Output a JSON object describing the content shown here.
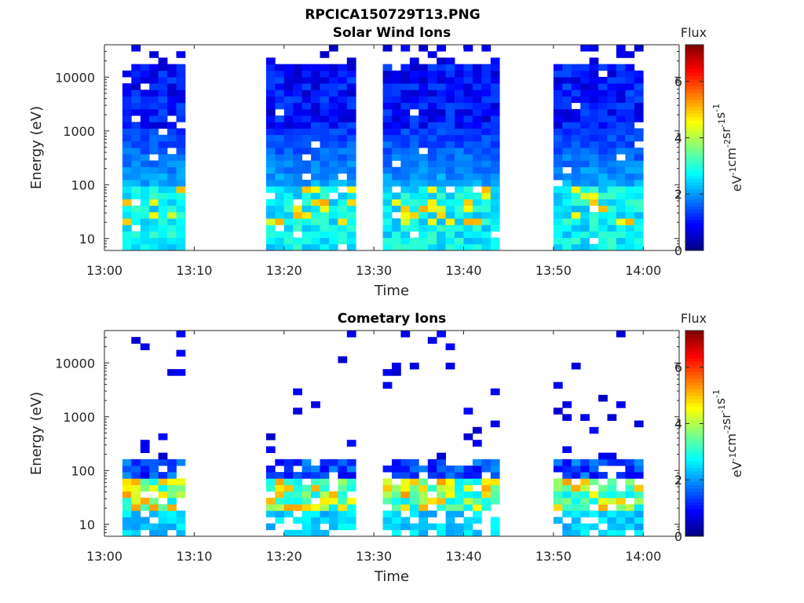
{
  "title": "RPCICA150729T13.PNG",
  "colormap": "jet",
  "chart_data": [
    {
      "type": "heatmap",
      "title": "Solar Wind Ions",
      "xlabel": "Time",
      "ylabel": "Energy (eV)",
      "xlim_minutes": [
        0,
        64
      ],
      "ylim": [
        6,
        40000
      ],
      "yscale": "log",
      "x_ticks": [
        "13:00",
        "13:10",
        "13:20",
        "13:30",
        "13:40",
        "13:50",
        "14:00"
      ],
      "y_ticks": [
        "10",
        "100",
        "1000",
        "10000"
      ],
      "colorbar": {
        "label": "Flux",
        "units": "eV-1cm-2sr-1s-1",
        "range": [
          0,
          7.3
        ],
        "ticks": [
          "0",
          "2",
          "4",
          "6"
        ]
      },
      "data_intervals": [
        {
          "start": "13:02",
          "end": "13:09"
        },
        {
          "start": "13:18",
          "end": "13:28"
        },
        {
          "start": "13:31",
          "end": "13:44"
        },
        {
          "start": "13:50",
          "end": "14:00"
        }
      ],
      "summary": "Flux ~0.5-1.5 above 1000 eV, ~2-3 below 100 eV, peaks ~4-6 near 20-40 eV"
    },
    {
      "type": "heatmap",
      "title": "Cometary Ions",
      "xlabel": "Time",
      "ylabel": "Energy (eV)",
      "xlim_minutes": [
        0,
        64
      ],
      "ylim": [
        6,
        40000
      ],
      "yscale": "log",
      "x_ticks": [
        "13:00",
        "13:10",
        "13:20",
        "13:30",
        "13:40",
        "13:50",
        "14:00"
      ],
      "y_ticks": [
        "10",
        "100",
        "1000",
        "10000"
      ],
      "colorbar": {
        "label": "Flux",
        "units": "eV-1cm-2sr-1s-1",
        "range": [
          0,
          7.3
        ],
        "ticks": [
          "0",
          "2",
          "4",
          "6"
        ]
      },
      "data_intervals": [
        {
          "start": "13:02",
          "end": "13:09"
        },
        {
          "start": "13:18",
          "end": "13:28"
        },
        {
          "start": "13:31",
          "end": "13:44"
        },
        {
          "start": "13:50",
          "end": "14:00"
        }
      ],
      "summary": "Flux ~1-2 at 100-300 eV, ~3-5 near 15-40 eV, peak ~6.5 near 40 eV at 13:53; sparse points up to ~20000 eV"
    }
  ]
}
